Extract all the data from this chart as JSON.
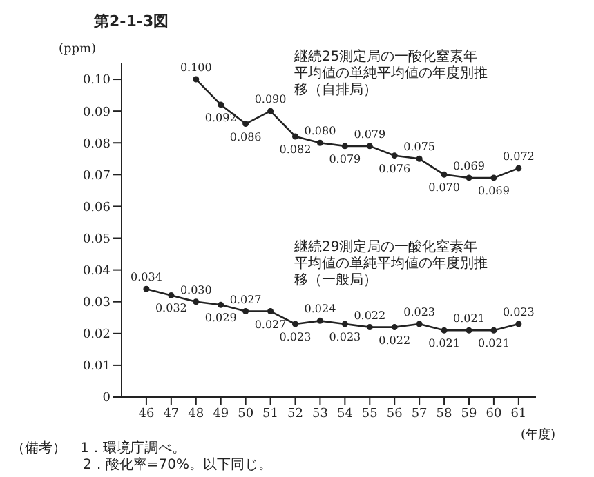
{
  "chart_data": {
    "type": "line",
    "title": "第2-1-3図",
    "ylabel": "(ppm)",
    "xlabel": "(年度)",
    "x": [
      46,
      47,
      48,
      49,
      50,
      51,
      52,
      53,
      54,
      55,
      56,
      57,
      58,
      59,
      60,
      61
    ],
    "xlim": [
      45,
      61.7
    ],
    "xticks": [
      46,
      47,
      48,
      49,
      50,
      51,
      52,
      53,
      54,
      55,
      56,
      57,
      58,
      59,
      60,
      61
    ],
    "ylim": [
      0,
      0.105
    ],
    "yticks": [
      0,
      {
        "value": 0.01,
        "label": "0.01"
      },
      {
        "value": 0.02,
        "label": "0.02"
      },
      {
        "value": 0.03,
        "label": "0.03"
      },
      {
        "value": 0.04,
        "label": "0.04"
      },
      {
        "value": 0.05,
        "label": "0.05"
      },
      {
        "value": 0.06,
        "label": "0.06"
      },
      {
        "value": 0.07,
        "label": "0.07"
      },
      {
        "value": 0.08,
        "label": "0.08"
      },
      {
        "value": 0.09,
        "label": "0.09"
      },
      {
        "value": 0.1,
        "label": "0.10"
      }
    ],
    "series": [
      {
        "name": "継続25測定局の一酸化窒素年平均値の単純平均値の年度別推移（自排局）",
        "color": "#222222",
        "x": [
          48,
          49,
          50,
          51,
          52,
          53,
          54,
          55,
          56,
          57,
          58,
          59,
          60,
          61
        ],
        "values": [
          0.1,
          0.092,
          0.086,
          0.09,
          0.082,
          0.08,
          0.079,
          0.079,
          0.076,
          0.075,
          0.07,
          0.069,
          0.069,
          0.072
        ],
        "value_labels": [
          "0.100",
          "0.092",
          "0.086",
          "0.090",
          "0.082",
          "0.080",
          "0.079",
          "0.079",
          "0.076",
          "0.075",
          "0.070",
          "0.069",
          "0.069",
          "0.072"
        ]
      },
      {
        "name": "継続29測定局の一酸化窒素年平均値の単純平均値の年度別推移（一般局）",
        "color": "#222222",
        "values": [
          0.034,
          0.032,
          0.03,
          0.029,
          0.027,
          0.027,
          0.023,
          0.024,
          0.023,
          0.022,
          0.022,
          0.023,
          0.021,
          0.021,
          0.021,
          0.023
        ],
        "value_labels": [
          "0.034",
          "0.032",
          "0.030",
          "0.029",
          "0.027",
          "0.027",
          "0.023",
          "0.024",
          "0.023",
          "0.022",
          "0.022",
          "0.023",
          "0.021",
          "0.021",
          "0.021",
          "0.023"
        ]
      }
    ],
    "marker": "circle",
    "line_style": "solid",
    "grid": false,
    "legend": false,
    "annotations": [
      "（備考）　1．環境庁調べ。",
      "2．酸化率=70%。以下同じ。"
    ]
  }
}
